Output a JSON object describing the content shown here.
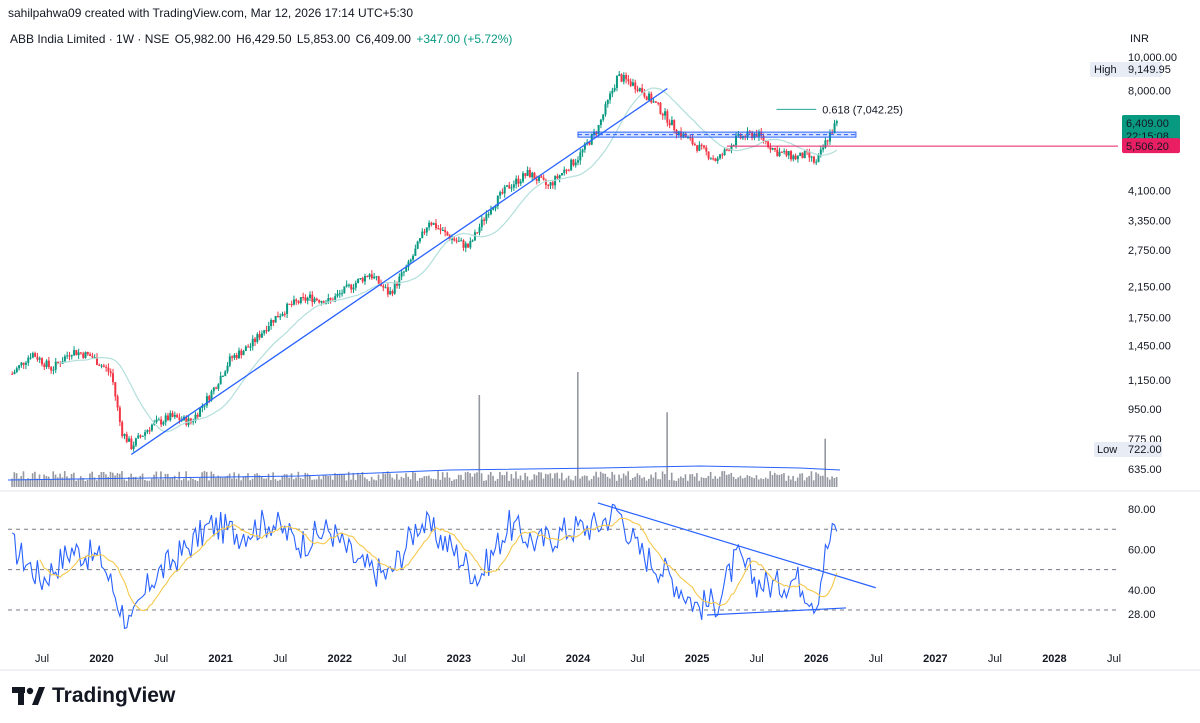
{
  "header": {
    "attribution": "sahilpahwa09 created with TradingView.com, Mar 12, 2026 17:14 UTC+5:30"
  },
  "symbol": {
    "name": "ABB India Limited · 1W · NSE",
    "open": "O5,982.00",
    "high": "H6,429.50",
    "low": "L5,853.00",
    "close": "C6,409.00",
    "change": "+347.00 (+5.72%)"
  },
  "brand": {
    "name": "TradingView"
  },
  "colors": {
    "up": "#089981",
    "down": "#f23645",
    "trendline": "#2962ff",
    "ma": "#b2dfdb",
    "rsi": "#2962ff",
    "rsi_ma": "#f5c84c",
    "fib": "#26a69a",
    "support": "#e91e63"
  },
  "chart_data": [
    {
      "type": "candlestick",
      "scale": "log",
      "currency": "INR",
      "price_ticks": [
        "10,000.00",
        "8,000.00",
        "6,409.00",
        "5,506.20",
        "4,100.00",
        "3,350.00",
        "2,750.00",
        "2,150.00",
        "1,750.00",
        "1,450.00",
        "1,150.00",
        "950.00",
        "775.00",
        "722.00",
        "635.00"
      ],
      "tick_values": [
        10000,
        8000,
        4100,
        3350,
        2750,
        2150,
        1750,
        1450,
        1150,
        950,
        775,
        635
      ],
      "high_label": "High",
      "high_value": "9,149.95",
      "low_label": "Low",
      "low_value": "722.00",
      "last_price": "6,409.00",
      "countdown": "22:15:08",
      "support_label": "5,506.20",
      "fib_label": "0.618 (7,042.25)",
      "x_labels": [
        "Jul",
        "2020",
        "Jul",
        "2021",
        "Jul",
        "2022",
        "Jul",
        "2023",
        "Jul",
        "2024",
        "Jul",
        "2025",
        "Jul",
        "2026",
        "Jul",
        "2027",
        "Jul",
        "2028",
        "Jul"
      ],
      "x_dates": [
        "2019-07",
        "2020-01",
        "2020-07",
        "2021-01",
        "2021-07",
        "2022-01",
        "2022-07",
        "2023-01",
        "2023-07",
        "2024-01",
        "2024-07",
        "2025-01",
        "2025-07",
        "2026-01",
        "2026-07",
        "2027-01",
        "2027-07",
        "2028-01",
        "2028-07"
      ],
      "price_path": [
        [
          "2019-04",
          1200
        ],
        [
          "2019-06",
          1380
        ],
        [
          "2019-08",
          1240
        ],
        [
          "2019-10",
          1400
        ],
        [
          "2019-12",
          1350
        ],
        [
          "2020-02",
          1200
        ],
        [
          "2020-03",
          820
        ],
        [
          "2020-04",
          740
        ],
        [
          "2020-06",
          850
        ],
        [
          "2020-08",
          900
        ],
        [
          "2020-10",
          870
        ],
        [
          "2020-12",
          1050
        ],
        [
          "2021-02",
          1330
        ],
        [
          "2021-04",
          1450
        ],
        [
          "2021-06",
          1700
        ],
        [
          "2021-08",
          1900
        ],
        [
          "2021-10",
          2000
        ],
        [
          "2021-12",
          1950
        ],
        [
          "2022-02",
          2150
        ],
        [
          "2022-04",
          2350
        ],
        [
          "2022-06",
          2050
        ],
        [
          "2022-08",
          2500
        ],
        [
          "2022-10",
          3350
        ],
        [
          "2022-12",
          3000
        ],
        [
          "2023-02",
          2800
        ],
        [
          "2023-04",
          3600
        ],
        [
          "2023-06",
          4200
        ],
        [
          "2023-08",
          4600
        ],
        [
          "2023-10",
          4200
        ],
        [
          "2023-12",
          4800
        ],
        [
          "2024-01",
          5100
        ],
        [
          "2024-03",
          6200
        ],
        [
          "2024-05",
          8800
        ],
        [
          "2024-07",
          8200
        ],
        [
          "2024-09",
          7200
        ],
        [
          "2024-11",
          6100
        ],
        [
          "2025-01",
          5500
        ],
        [
          "2025-03",
          5000
        ],
        [
          "2025-05",
          5800
        ],
        [
          "2025-07",
          6000
        ],
        [
          "2025-09",
          5300
        ],
        [
          "2025-11",
          5100
        ],
        [
          "2025-12",
          5200
        ],
        [
          "2026-01",
          4900
        ],
        [
          "2026-02",
          5700
        ],
        [
          "2026-03",
          6409
        ]
      ],
      "rsi_ticks": [
        "80.00",
        "60.00",
        "40.00",
        "28.00"
      ],
      "rsi_tick_values": [
        80,
        60,
        40,
        28
      ],
      "rsi_levels": [
        70,
        50,
        30
      ],
      "rsi_path": [
        [
          "2019-04",
          62
        ],
        [
          "2019-07",
          45
        ],
        [
          "2019-10",
          60
        ],
        [
          "2020-01",
          55
        ],
        [
          "2020-03",
          30
        ],
        [
          "2020-04",
          22
        ],
        [
          "2020-06",
          45
        ],
        [
          "2020-09",
          58
        ],
        [
          "2020-12",
          72
        ],
        [
          "2021-03",
          68
        ],
        [
          "2021-06",
          74
        ],
        [
          "2021-09",
          63
        ],
        [
          "2021-12",
          70
        ],
        [
          "2022-03",
          52
        ],
        [
          "2022-06",
          47
        ],
        [
          "2022-09",
          74
        ],
        [
          "2022-12",
          62
        ],
        [
          "2023-03",
          46
        ],
        [
          "2023-06",
          72
        ],
        [
          "2023-09",
          63
        ],
        [
          "2023-12",
          70
        ],
        [
          "2024-03",
          72
        ],
        [
          "2024-05",
          80
        ],
        [
          "2024-07",
          60
        ],
        [
          "2024-10",
          48
        ],
        [
          "2025-01",
          32
        ],
        [
          "2025-03",
          34
        ],
        [
          "2025-05",
          56
        ],
        [
          "2025-07",
          44
        ],
        [
          "2025-09",
          42
        ],
        [
          "2025-11",
          46
        ],
        [
          "2026-01",
          34
        ],
        [
          "2026-02",
          60
        ],
        [
          "2026-03",
          72
        ]
      ],
      "volume_spikes": [
        [
          "2024-01",
          1.0
        ],
        [
          "2023-03",
          0.8
        ],
        [
          "2024-10",
          0.65
        ],
        [
          "2026-02",
          0.42
        ]
      ]
    }
  ]
}
